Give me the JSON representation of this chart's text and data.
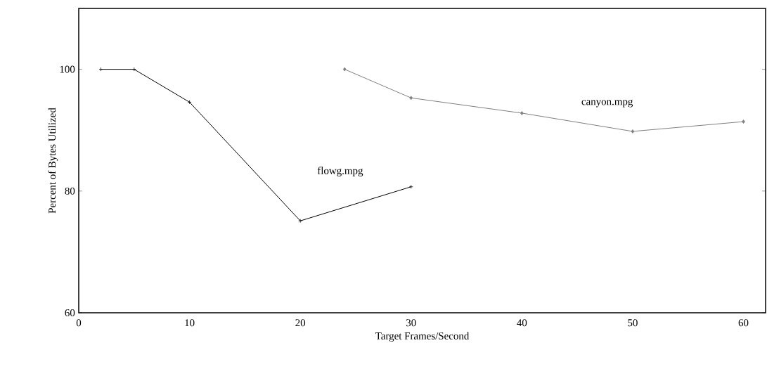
{
  "chart_data": {
    "type": "line",
    "xlabel": "Target Frames/Second",
    "ylabel": "Percent of Bytes Utilized",
    "xlim": [
      0,
      62
    ],
    "ylim": [
      60,
      110
    ],
    "xticks": [
      0,
      10,
      20,
      30,
      40,
      50,
      60
    ],
    "yticks": [
      60,
      80,
      100
    ],
    "grid": false,
    "series": [
      {
        "name": "flowg.mpg",
        "color": "#000000",
        "marker": "cross",
        "x": [
          2,
          5,
          10,
          20,
          30
        ],
        "values": [
          100,
          100,
          94.6,
          75.1,
          80.7
        ]
      },
      {
        "name": "canyon.mpg",
        "color": "#808080",
        "marker": "diamond",
        "x": [
          24,
          30,
          40,
          50,
          60
        ],
        "values": [
          100,
          95.3,
          92.8,
          89.8,
          91.4
        ]
      }
    ]
  }
}
